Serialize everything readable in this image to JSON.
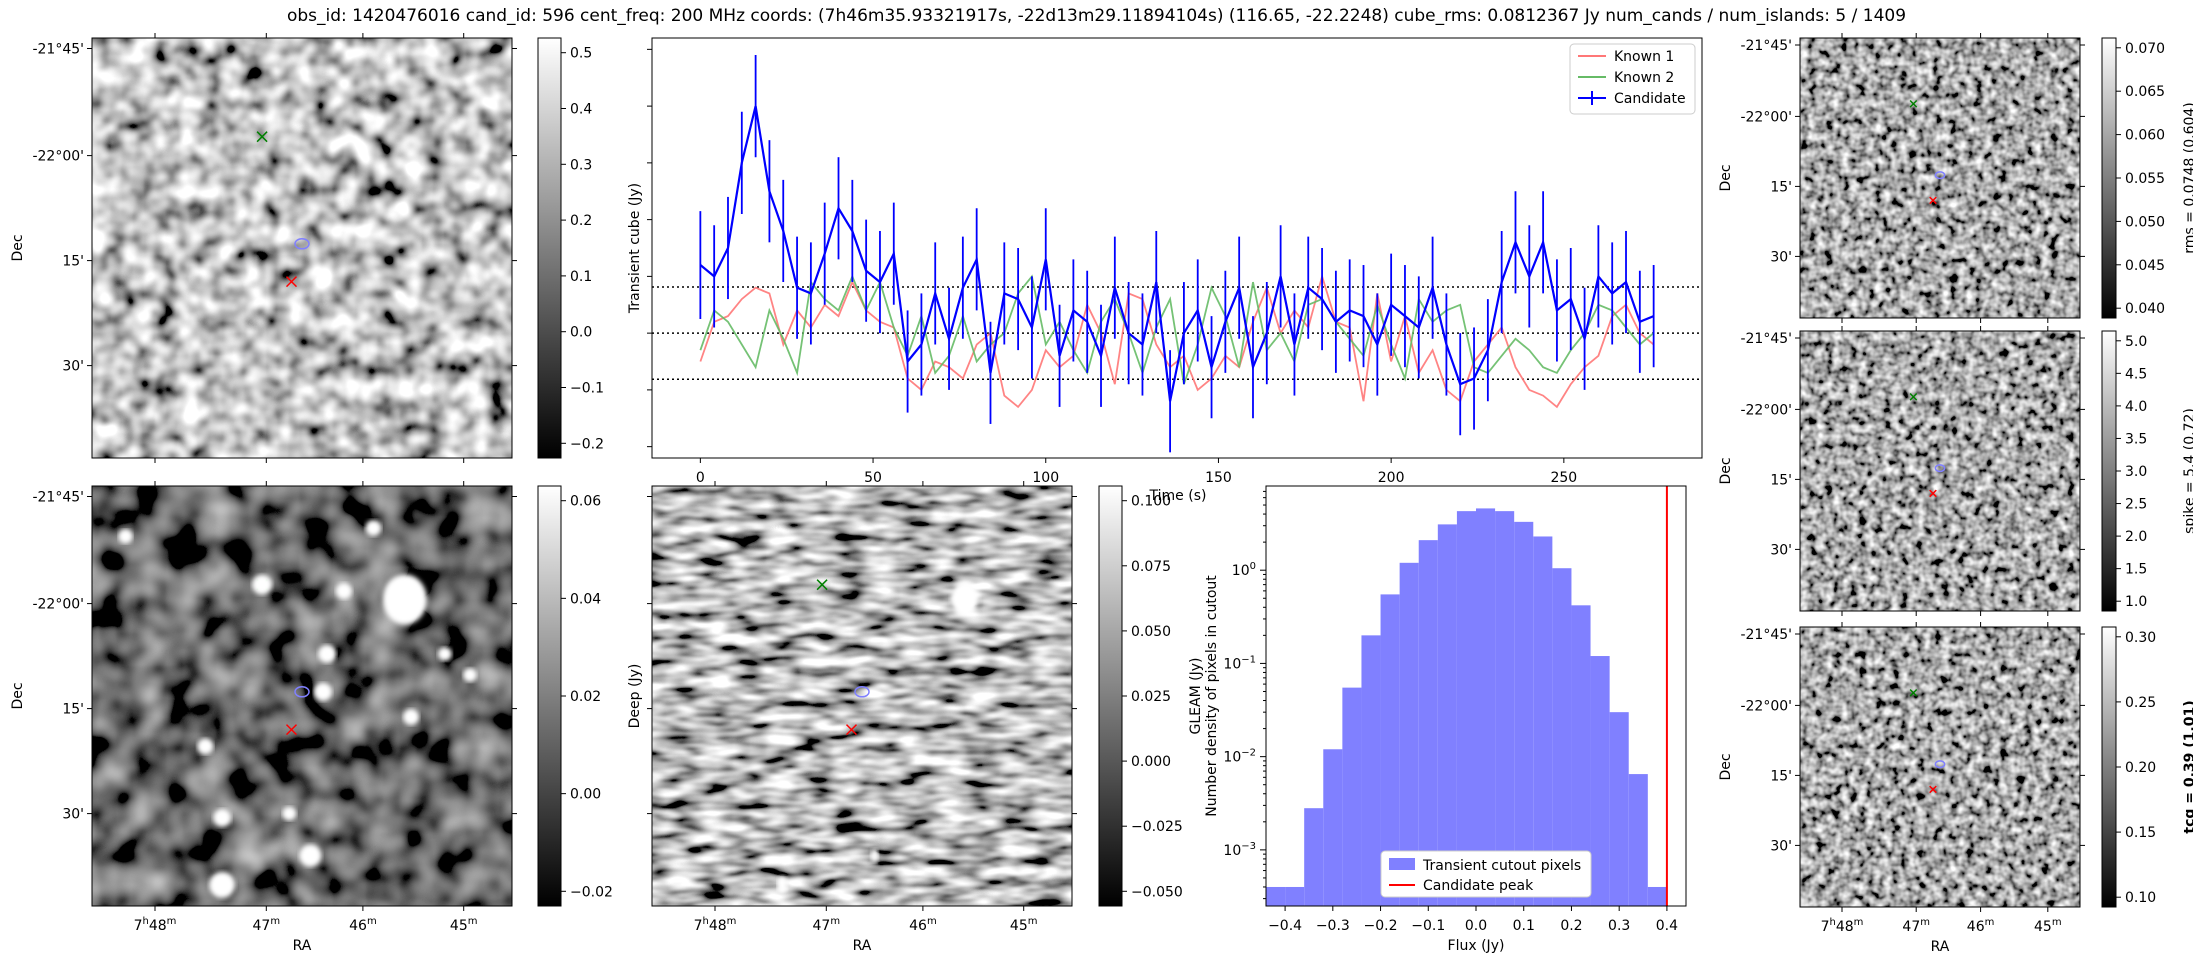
{
  "header": {
    "title": "obs_id: 1420476016 cand_id: 596 cent_freq: 200 MHz coords: (7h46m35.93321917s, -22d13m29.11894104s) (116.65, -22.2248) cube_rms: 0.0812367 Jy num_cands / num_islands: 5 / 1409"
  },
  "sky_axes": {
    "dec_ticks": [
      "-21°45'",
      "-22°00'",
      "15'",
      "30'"
    ],
    "ra_ticks": [
      "7h48m",
      "47m",
      "46m",
      "45m"
    ],
    "xlabel": "RA",
    "ylabel": "Dec"
  },
  "panels": {
    "transient": {
      "colorbar_label": "Transient cube (Jy)",
      "colorbar_ticks": [
        "0.5",
        "0.4",
        "0.3",
        "0.2",
        "0.1",
        "0.0",
        "−0.1",
        "−0.2"
      ]
    },
    "deep": {
      "colorbar_label": "Deep (Jy)",
      "colorbar_ticks": [
        "0.06",
        "0.04",
        "0.02",
        "0.00",
        "−0.02"
      ]
    },
    "gleam": {
      "colorbar_label": "GLEAM (Jy)",
      "colorbar_ticks": [
        "0.100",
        "0.075",
        "0.050",
        "0.025",
        "0.000",
        "−0.025",
        "−0.050"
      ]
    },
    "rms": {
      "colorbar_label": "rms = 0.0748 (0.604)",
      "colorbar_ticks": [
        "0.070",
        "0.065",
        "0.060",
        "0.055",
        "0.050",
        "0.045",
        "0.040"
      ]
    },
    "spike": {
      "colorbar_label": "spike = 5.4 (0.72)",
      "colorbar_ticks": [
        "5.0",
        "4.5",
        "4.0",
        "3.5",
        "3.0",
        "2.5",
        "2.0",
        "1.5",
        "1.0"
      ]
    },
    "tcg": {
      "colorbar_label": "tcg = 0.39 (1.01)",
      "colorbar_ticks": [
        "0.30",
        "0.25",
        "0.20",
        "0.15",
        "0.10"
      ]
    }
  },
  "colors": {
    "candidate": "#0000ff",
    "known1": "#ff7777",
    "known2": "#66bb66",
    "hist": "#8080ff",
    "peak": "#ff0000",
    "marker_red": "#ff0000",
    "marker_green": "#008000",
    "ellipse": "#8080ff"
  },
  "chart_data": [
    {
      "id": "lightcurve",
      "type": "line",
      "xlabel": "Time (s)",
      "ylabel": "",
      "xlim": [
        -14,
        290
      ],
      "ylim": [
        -0.22,
        0.52
      ],
      "xticks": [
        0,
        50,
        100,
        150,
        200,
        250
      ],
      "hlines": [
        0.0812,
        0.0,
        -0.0812
      ],
      "legend": [
        "Known 1",
        "Known 2",
        "Candidate"
      ],
      "legend_loc": "top-right",
      "x": [
        0,
        4,
        8,
        12,
        16,
        20,
        24,
        28,
        32,
        36,
        40,
        44,
        48,
        52,
        56,
        60,
        64,
        68,
        72,
        76,
        80,
        84,
        88,
        92,
        96,
        100,
        104,
        108,
        112,
        116,
        120,
        124,
        128,
        132,
        136,
        140,
        144,
        148,
        152,
        156,
        160,
        164,
        168,
        172,
        176,
        180,
        184,
        188,
        192,
        196,
        200,
        204,
        208,
        212,
        216,
        220,
        224,
        228,
        232,
        236,
        240,
        244,
        248,
        252,
        256,
        260,
        264,
        268,
        272,
        276
      ],
      "series": [
        {
          "name": "Known 1",
          "values": [
            -0.05,
            0.02,
            0.03,
            0.06,
            0.08,
            0.07,
            -0.02,
            0.04,
            0.01,
            0.05,
            0.03,
            0.09,
            0.04,
            0.02,
            0.01,
            -0.08,
            -0.1,
            -0.05,
            -0.06,
            -0.08,
            -0.02,
            0.0,
            -0.11,
            -0.13,
            -0.1,
            -0.03,
            -0.06,
            -0.04,
            0.05,
            0.0,
            -0.09,
            0.07,
            0.06,
            -0.02,
            -0.06,
            -0.04,
            -0.1,
            -0.08,
            -0.04,
            -0.06,
            0.02,
            0.08,
            0.0,
            0.04,
            0.01,
            0.1,
            0.02,
            0.01,
            -0.12,
            0.07,
            -0.05,
            0.03,
            -0.07,
            -0.03,
            -0.1,
            -0.12,
            -0.05,
            -0.02,
            0.01,
            -0.06,
            -0.1,
            -0.11,
            -0.13,
            -0.09,
            -0.06,
            -0.04,
            0.03,
            0.05,
            0.0,
            -0.02
          ]
        },
        {
          "name": "Known 2",
          "values": [
            -0.03,
            0.04,
            0.02,
            -0.02,
            -0.06,
            0.04,
            -0.01,
            -0.07,
            0.09,
            0.06,
            0.04,
            0.1,
            0.04,
            0.09,
            0.01,
            -0.04,
            0.03,
            -0.07,
            -0.04,
            0.03,
            -0.05,
            -0.02,
            0.0,
            0.07,
            0.1,
            -0.02,
            0.02,
            -0.03,
            -0.07,
            0.02,
            0.06,
            0.0,
            -0.07,
            0.01,
            0.06,
            -0.09,
            -0.02,
            0.08,
            0.03,
            -0.06,
            0.09,
            -0.03,
            0.0,
            -0.05,
            0.05,
            0.06,
            0.02,
            -0.01,
            -0.04,
            0.05,
            -0.02,
            -0.08,
            0.06,
            0.02,
            0.04,
            0.05,
            -0.06,
            -0.07,
            -0.04,
            -0.01,
            -0.03,
            -0.06,
            -0.07,
            -0.03,
            0.0,
            0.05,
            0.04,
            0.01,
            -0.02,
            0.0
          ]
        },
        {
          "name": "Candidate",
          "values": [
            0.12,
            0.1,
            0.15,
            0.3,
            0.4,
            0.25,
            0.18,
            0.08,
            0.07,
            0.14,
            0.22,
            0.18,
            0.11,
            0.09,
            0.14,
            -0.05,
            -0.02,
            0.07,
            -0.01,
            0.08,
            0.13,
            -0.07,
            0.07,
            0.06,
            0.01,
            0.13,
            -0.04,
            0.04,
            0.02,
            -0.04,
            0.08,
            0.0,
            -0.02,
            0.09,
            -0.12,
            0.0,
            0.04,
            -0.06,
            0.02,
            0.08,
            -0.06,
            0.0,
            0.1,
            -0.02,
            0.08,
            0.06,
            0.02,
            0.04,
            0.03,
            -0.02,
            0.05,
            0.03,
            0.01,
            0.08,
            -0.02,
            -0.09,
            -0.08,
            -0.03,
            0.09,
            0.16,
            0.1,
            0.16,
            0.04,
            0.06,
            -0.01,
            0.1,
            0.07,
            0.09,
            0.02,
            0.03
          ],
          "errors": [
            0.095,
            0.09,
            0.09,
            0.09,
            0.09,
            0.09,
            0.09,
            0.09,
            0.09,
            0.09,
            0.09,
            0.09,
            0.09,
            0.09,
            0.09,
            0.09,
            0.09,
            0.09,
            0.09,
            0.09,
            0.09,
            0.09,
            0.09,
            0.09,
            0.09,
            0.09,
            0.09,
            0.09,
            0.09,
            0.09,
            0.09,
            0.09,
            0.09,
            0.09,
            0.09,
            0.09,
            0.09,
            0.09,
            0.09,
            0.09,
            0.09,
            0.09,
            0.09,
            0.09,
            0.09,
            0.09,
            0.09,
            0.09,
            0.09,
            0.09,
            0.09,
            0.09,
            0.09,
            0.09,
            0.09,
            0.09,
            0.09,
            0.09,
            0.09,
            0.09,
            0.09,
            0.09,
            0.09,
            0.09,
            0.09,
            0.09,
            0.09,
            0.09,
            0.09,
            0.09
          ]
        }
      ]
    },
    {
      "id": "histogram",
      "type": "bar",
      "xlabel": "Flux (Jy)",
      "ylabel": "Number density of pixels in cutout",
      "xlim": [
        -0.44,
        0.44
      ],
      "yscale": "log",
      "ylim": [
        0.00025,
        8
      ],
      "xticks": [
        "−0.4",
        "−0.3",
        "−0.2",
        "−0.1",
        "0.0",
        "0.1",
        "0.2",
        "0.3",
        "0.4"
      ],
      "yticks": [
        "10^0",
        "10^-1",
        "10^-2",
        "10^-3"
      ],
      "bin_edges": [
        -0.44,
        -0.4,
        -0.36,
        -0.32,
        -0.28,
        -0.24,
        -0.2,
        -0.16,
        -0.12,
        -0.08,
        -0.04,
        0.0,
        0.04,
        0.08,
        0.12,
        0.16,
        0.2,
        0.24,
        0.28,
        0.32,
        0.36,
        0.4
      ],
      "values": [
        0.0004,
        0.0004,
        0.0028,
        0.012,
        0.055,
        0.2,
        0.55,
        1.2,
        2.1,
        3.1,
        4.3,
        4.6,
        4.3,
        3.3,
        2.3,
        1.05,
        0.42,
        0.12,
        0.03,
        0.0065,
        0.0004
      ],
      "peak_value": 0.4,
      "legend": [
        "Transient cutout pixels",
        "Candidate peak"
      ],
      "legend_loc": "lower-center"
    }
  ]
}
